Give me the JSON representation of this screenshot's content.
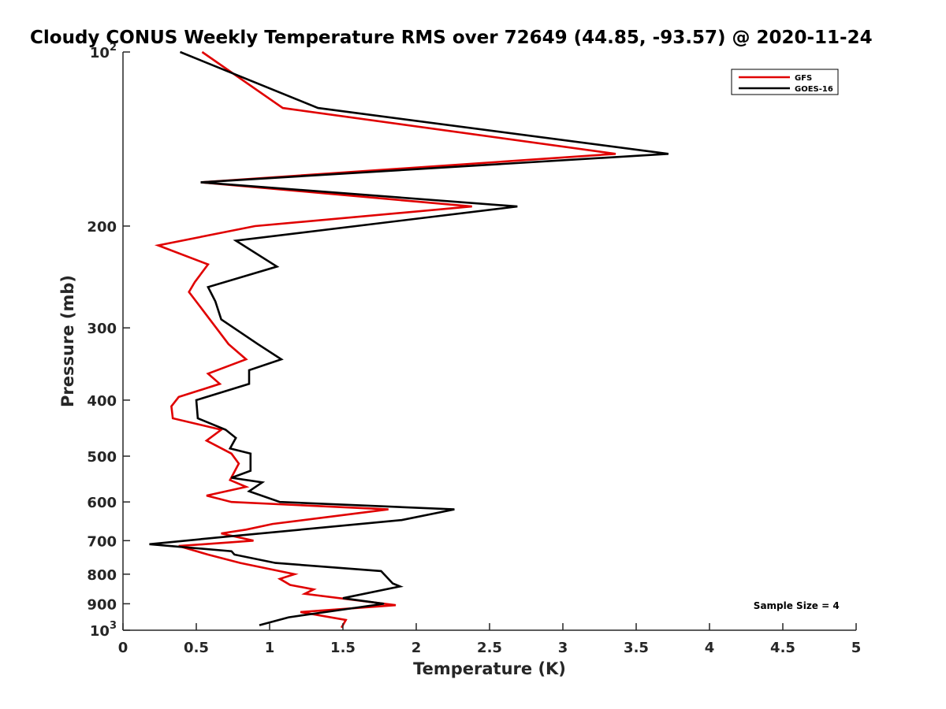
{
  "chart_data": {
    "type": "line",
    "title": "Cloudy CONUS Weekly Temperature RMS over 72649 (44.85, -93.57) @ 2020-11-24",
    "xlabel": "Temperature (K)",
    "ylabel": "Pressure (mb)",
    "xlim": [
      0,
      5
    ],
    "ylim": [
      100,
      1000
    ],
    "yscale": "log",
    "y_reversed": true,
    "grid": false,
    "legend_position": "top-right",
    "xticks": [
      0,
      0.5,
      1,
      1.5,
      2,
      2.5,
      3,
      3.5,
      4,
      4.5,
      5
    ],
    "xtick_labels": [
      "0",
      "0.5",
      "1",
      "1.5",
      "2",
      "2.5",
      "3",
      "3.5",
      "4",
      "4.5",
      "5"
    ],
    "yticks": [
      100,
      200,
      300,
      400,
      500,
      600,
      700,
      800,
      900,
      1000
    ],
    "ytick_labels": [
      {
        "base": "10",
        "exp": "2"
      },
      {
        "base": "200",
        "exp": ""
      },
      {
        "base": "300",
        "exp": ""
      },
      {
        "base": "400",
        "exp": ""
      },
      {
        "base": "500",
        "exp": ""
      },
      {
        "base": "600",
        "exp": ""
      },
      {
        "base": "700",
        "exp": ""
      },
      {
        "base": "800",
        "exp": ""
      },
      {
        "base": "900",
        "exp": ""
      },
      {
        "base": "10",
        "exp": "3"
      }
    ],
    "series": [
      {
        "name": "GFS",
        "color": "#e00000",
        "points": [
          [
            0.54,
            100
          ],
          [
            1.09,
            125
          ],
          [
            3.36,
            150
          ],
          [
            0.53,
            168
          ],
          [
            2.38,
            185
          ],
          [
            0.9,
            200
          ],
          [
            0.24,
            216
          ],
          [
            0.58,
            233
          ],
          [
            0.49,
            250
          ],
          [
            0.45,
            260
          ],
          [
            0.72,
            320
          ],
          [
            0.84,
            340
          ],
          [
            0.58,
            360
          ],
          [
            0.66,
            375
          ],
          [
            0.38,
            395
          ],
          [
            0.33,
            410
          ],
          [
            0.34,
            430
          ],
          [
            0.67,
            450
          ],
          [
            0.57,
            470
          ],
          [
            0.74,
            495
          ],
          [
            0.79,
            515
          ],
          [
            0.73,
            550
          ],
          [
            0.84,
            565
          ],
          [
            0.57,
            585
          ],
          [
            0.74,
            600
          ],
          [
            1.81,
            618
          ],
          [
            1.02,
            655
          ],
          [
            0.84,
            670
          ],
          [
            0.67,
            680
          ],
          [
            0.89,
            700
          ],
          [
            0.38,
            715
          ],
          [
            0.58,
            740
          ],
          [
            0.8,
            765
          ],
          [
            1.17,
            800
          ],
          [
            1.07,
            815
          ],
          [
            1.14,
            835
          ],
          [
            1.3,
            850
          ],
          [
            1.24,
            865
          ],
          [
            1.86,
            905
          ],
          [
            1.21,
            930
          ],
          [
            1.52,
            960
          ],
          [
            1.49,
            990
          ]
        ]
      },
      {
        "name": "GOES-16",
        "color": "#000000",
        "points": [
          [
            0.39,
            100
          ],
          [
            1.33,
            125
          ],
          [
            3.72,
            150
          ],
          [
            0.53,
            168
          ],
          [
            2.69,
            185
          ],
          [
            0.77,
            212
          ],
          [
            1.05,
            235
          ],
          [
            0.58,
            255
          ],
          [
            0.63,
            270
          ],
          [
            0.67,
            290
          ],
          [
            0.92,
            320
          ],
          [
            1.08,
            340
          ],
          [
            0.86,
            355
          ],
          [
            0.86,
            375
          ],
          [
            0.5,
            400
          ],
          [
            0.51,
            430
          ],
          [
            0.7,
            450
          ],
          [
            0.77,
            465
          ],
          [
            0.73,
            485
          ],
          [
            0.87,
            495
          ],
          [
            0.87,
            530
          ],
          [
            0.74,
            545
          ],
          [
            0.95,
            555
          ],
          [
            0.86,
            575
          ],
          [
            1.07,
            600
          ],
          [
            2.26,
            618
          ],
          [
            1.9,
            645
          ],
          [
            0.68,
            690
          ],
          [
            0.18,
            710
          ],
          [
            0.74,
            730
          ],
          [
            0.76,
            740
          ],
          [
            1.04,
            765
          ],
          [
            1.76,
            790
          ],
          [
            1.84,
            830
          ],
          [
            1.89,
            840
          ],
          [
            1.5,
            880
          ],
          [
            1.78,
            900
          ],
          [
            1.45,
            925
          ],
          [
            1.13,
            950
          ],
          [
            0.93,
            980
          ]
        ]
      }
    ],
    "legend": [
      "GFS",
      "GOES-16"
    ],
    "annotations": [
      {
        "text": "Sample Size = 4",
        "x": 4.3,
        "y": 905
      }
    ]
  }
}
